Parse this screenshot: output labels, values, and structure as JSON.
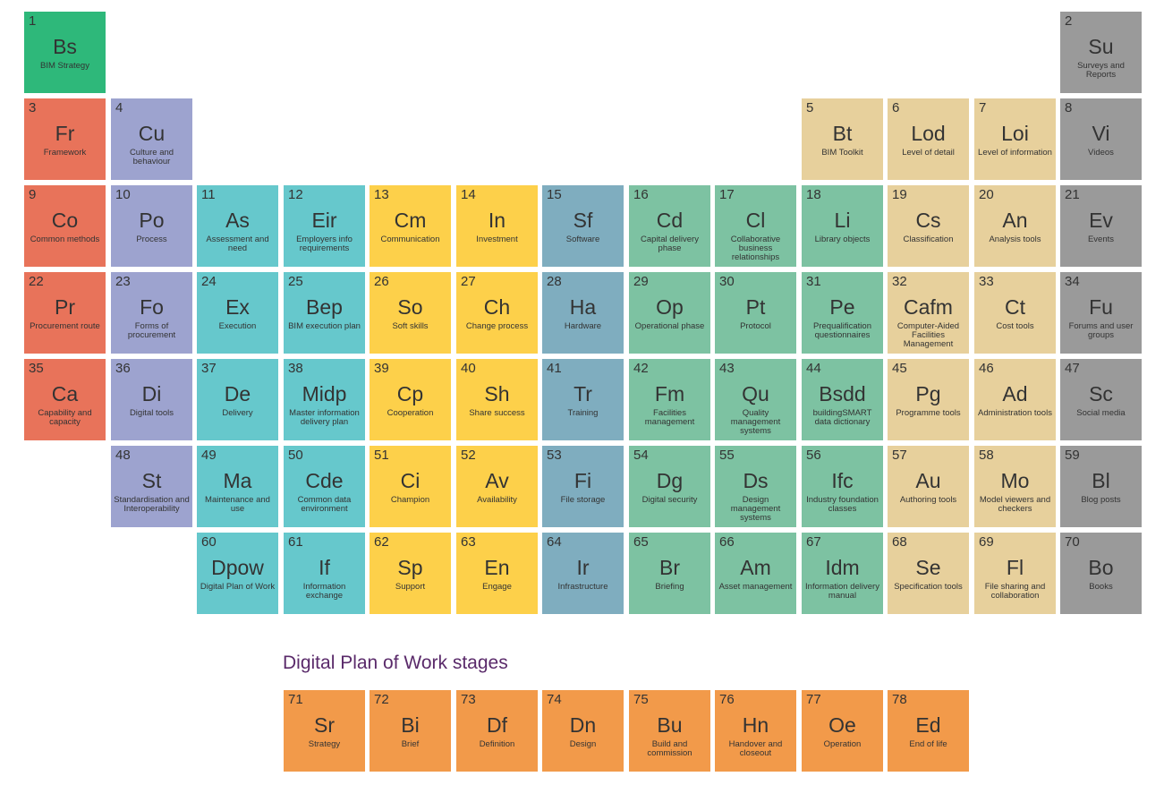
{
  "colors": {
    "strategy": "#2eb87a",
    "red": "#e8735a",
    "purple": "#9da3cf",
    "teal": "#66c8cc",
    "yellow": "#fdd04a",
    "blue": "#7fadbf",
    "green": "#7dc2a2",
    "sand": "#e7d09c",
    "grey": "#9a9a9a",
    "orange": "#f29a4a"
  },
  "elements": [
    {
      "n": "1",
      "s": "Bs",
      "name": "BIM Strategy",
      "col": 0,
      "row": 0,
      "g": "strategy"
    },
    {
      "n": "2",
      "s": "Su",
      "name": "Surveys and Reports",
      "col": 12,
      "row": 0,
      "g": "grey"
    },
    {
      "n": "3",
      "s": "Fr",
      "name": "Framework",
      "col": 0,
      "row": 1,
      "g": "red"
    },
    {
      "n": "4",
      "s": "Cu",
      "name": "Culture and behaviour",
      "col": 1,
      "row": 1,
      "g": "purple"
    },
    {
      "n": "5",
      "s": "Bt",
      "name": "BIM Toolkit",
      "col": 9,
      "row": 1,
      "g": "sand"
    },
    {
      "n": "6",
      "s": "Lod",
      "name": "Level of detail",
      "col": 10,
      "row": 1,
      "g": "sand"
    },
    {
      "n": "7",
      "s": "Loi",
      "name": "Level of information",
      "col": 11,
      "row": 1,
      "g": "sand"
    },
    {
      "n": "8",
      "s": "Vi",
      "name": "Videos",
      "col": 12,
      "row": 1,
      "g": "grey"
    },
    {
      "n": "9",
      "s": "Co",
      "name": "Common methods",
      "col": 0,
      "row": 2,
      "g": "red"
    },
    {
      "n": "10",
      "s": "Po",
      "name": "Process",
      "col": 1,
      "row": 2,
      "g": "purple"
    },
    {
      "n": "11",
      "s": "As",
      "name": "Assessment and need",
      "col": 2,
      "row": 2,
      "g": "teal"
    },
    {
      "n": "12",
      "s": "Eir",
      "name": "Employers info requirements",
      "col": 3,
      "row": 2,
      "g": "teal"
    },
    {
      "n": "13",
      "s": "Cm",
      "name": "Communication",
      "col": 4,
      "row": 2,
      "g": "yellow"
    },
    {
      "n": "14",
      "s": "In",
      "name": "Investment",
      "col": 5,
      "row": 2,
      "g": "yellow"
    },
    {
      "n": "15",
      "s": "Sf",
      "name": "Software",
      "col": 6,
      "row": 2,
      "g": "blue"
    },
    {
      "n": "16",
      "s": "Cd",
      "name": "Capital delivery phase",
      "col": 7,
      "row": 2,
      "g": "green"
    },
    {
      "n": "17",
      "s": "Cl",
      "name": "Collaborative business relationships",
      "col": 8,
      "row": 2,
      "g": "green"
    },
    {
      "n": "18",
      "s": "Li",
      "name": "Library objects",
      "col": 9,
      "row": 2,
      "g": "green"
    },
    {
      "n": "19",
      "s": "Cs",
      "name": "Classification",
      "col": 10,
      "row": 2,
      "g": "sand"
    },
    {
      "n": "20",
      "s": "An",
      "name": "Analysis tools",
      "col": 11,
      "row": 2,
      "g": "sand"
    },
    {
      "n": "21",
      "s": "Ev",
      "name": "Events",
      "col": 12,
      "row": 2,
      "g": "grey"
    },
    {
      "n": "22",
      "s": "Pr",
      "name": "Procurement route",
      "col": 0,
      "row": 3,
      "g": "red"
    },
    {
      "n": "23",
      "s": "Fo",
      "name": "Forms of procurement",
      "col": 1,
      "row": 3,
      "g": "purple"
    },
    {
      "n": "24",
      "s": "Ex",
      "name": "Execution",
      "col": 2,
      "row": 3,
      "g": "teal"
    },
    {
      "n": "25",
      "s": "Bep",
      "name": "BIM execution plan",
      "col": 3,
      "row": 3,
      "g": "teal"
    },
    {
      "n": "26",
      "s": "So",
      "name": "Soft skills",
      "col": 4,
      "row": 3,
      "g": "yellow"
    },
    {
      "n": "27",
      "s": "Ch",
      "name": "Change process",
      "col": 5,
      "row": 3,
      "g": "yellow"
    },
    {
      "n": "28",
      "s": "Ha",
      "name": "Hardware",
      "col": 6,
      "row": 3,
      "g": "blue"
    },
    {
      "n": "29",
      "s": "Op",
      "name": "Operational phase",
      "col": 7,
      "row": 3,
      "g": "green"
    },
    {
      "n": "30",
      "s": "Pt",
      "name": "Protocol",
      "col": 8,
      "row": 3,
      "g": "green"
    },
    {
      "n": "31",
      "s": "Pe",
      "name": "Prequalification questionnaires",
      "col": 9,
      "row": 3,
      "g": "green"
    },
    {
      "n": "32",
      "s": "Cafm",
      "name": "Computer-Aided Facilities Management",
      "col": 10,
      "row": 3,
      "g": "sand"
    },
    {
      "n": "33",
      "s": "Ct",
      "name": "Cost tools",
      "col": 11,
      "row": 3,
      "g": "sand"
    },
    {
      "n": "34",
      "s": "Fu",
      "name": "Forums and user groups",
      "col": 12,
      "row": 3,
      "g": "grey"
    },
    {
      "n": "35",
      "s": "Ca",
      "name": "Capability and capacity",
      "col": 0,
      "row": 4,
      "g": "red"
    },
    {
      "n": "36",
      "s": "Di",
      "name": "Digital tools",
      "col": 1,
      "row": 4,
      "g": "purple"
    },
    {
      "n": "37",
      "s": "De",
      "name": "Delivery",
      "col": 2,
      "row": 4,
      "g": "teal"
    },
    {
      "n": "38",
      "s": "Midp",
      "name": "Master information delivery plan",
      "col": 3,
      "row": 4,
      "g": "teal"
    },
    {
      "n": "39",
      "s": "Cp",
      "name": "Cooperation",
      "col": 4,
      "row": 4,
      "g": "yellow"
    },
    {
      "n": "40",
      "s": "Sh",
      "name": "Share success",
      "col": 5,
      "row": 4,
      "g": "yellow"
    },
    {
      "n": "41",
      "s": "Tr",
      "name": "Training",
      "col": 6,
      "row": 4,
      "g": "blue"
    },
    {
      "n": "42",
      "s": "Fm",
      "name": "Facilities management",
      "col": 7,
      "row": 4,
      "g": "green"
    },
    {
      "n": "43",
      "s": "Qu",
      "name": "Quality management systems",
      "col": 8,
      "row": 4,
      "g": "green"
    },
    {
      "n": "44",
      "s": "Bsdd",
      "name": "buildingSMART data dictionary",
      "col": 9,
      "row": 4,
      "g": "green"
    },
    {
      "n": "45",
      "s": "Pg",
      "name": "Programme tools",
      "col": 10,
      "row": 4,
      "g": "sand"
    },
    {
      "n": "46",
      "s": "Ad",
      "name": "Administration tools",
      "col": 11,
      "row": 4,
      "g": "sand"
    },
    {
      "n": "47",
      "s": "Sc",
      "name": "Social media",
      "col": 12,
      "row": 4,
      "g": "grey"
    },
    {
      "n": "48",
      "s": "St",
      "name": "Standardisation and Interoperability",
      "col": 1,
      "row": 5,
      "g": "purple"
    },
    {
      "n": "49",
      "s": "Ma",
      "name": "Maintenance and use",
      "col": 2,
      "row": 5,
      "g": "teal"
    },
    {
      "n": "50",
      "s": "Cde",
      "name": "Common data environment",
      "col": 3,
      "row": 5,
      "g": "teal"
    },
    {
      "n": "51",
      "s": "Ci",
      "name": "Champion",
      "col": 4,
      "row": 5,
      "g": "yellow"
    },
    {
      "n": "52",
      "s": "Av",
      "name": "Availability",
      "col": 5,
      "row": 5,
      "g": "yellow"
    },
    {
      "n": "53",
      "s": "Fi",
      "name": "File storage",
      "col": 6,
      "row": 5,
      "g": "blue"
    },
    {
      "n": "54",
      "s": "Dg",
      "name": "Digital security",
      "col": 7,
      "row": 5,
      "g": "green"
    },
    {
      "n": "55",
      "s": "Ds",
      "name": "Design management systems",
      "col": 8,
      "row": 5,
      "g": "green"
    },
    {
      "n": "56",
      "s": "Ifc",
      "name": "Industry foundation classes",
      "col": 9,
      "row": 5,
      "g": "green"
    },
    {
      "n": "57",
      "s": "Au",
      "name": "Authoring tools",
      "col": 10,
      "row": 5,
      "g": "sand"
    },
    {
      "n": "58",
      "s": "Mo",
      "name": "Model viewers and checkers",
      "col": 11,
      "row": 5,
      "g": "sand"
    },
    {
      "n": "59",
      "s": "Bl",
      "name": "Blog posts",
      "col": 12,
      "row": 5,
      "g": "grey"
    },
    {
      "n": "60",
      "s": "Dpow",
      "name": "Digital Plan of Work",
      "col": 2,
      "row": 6,
      "g": "teal"
    },
    {
      "n": "61",
      "s": "If",
      "name": "Information exchange",
      "col": 3,
      "row": 6,
      "g": "teal"
    },
    {
      "n": "62",
      "s": "Sp",
      "name": "Support",
      "col": 4,
      "row": 6,
      "g": "yellow"
    },
    {
      "n": "63",
      "s": "En",
      "name": "Engage",
      "col": 5,
      "row": 6,
      "g": "yellow"
    },
    {
      "n": "64",
      "s": "Ir",
      "name": "Infrastructure",
      "col": 6,
      "row": 6,
      "g": "blue"
    },
    {
      "n": "65",
      "s": "Br",
      "name": "Briefing",
      "col": 7,
      "row": 6,
      "g": "green"
    },
    {
      "n": "66",
      "s": "Am",
      "name": "Asset management",
      "col": 8,
      "row": 6,
      "g": "green"
    },
    {
      "n": "67",
      "s": "Idm",
      "name": "Information delivery manual",
      "col": 9,
      "row": 6,
      "g": "green"
    },
    {
      "n": "68",
      "s": "Se",
      "name": "Specification tools",
      "col": 10,
      "row": 6,
      "g": "sand"
    },
    {
      "n": "69",
      "s": "Fl",
      "name": "File sharing and collaboration",
      "col": 11,
      "row": 6,
      "g": "sand"
    },
    {
      "n": "70",
      "s": "Bo",
      "name": "Books",
      "col": 12,
      "row": 6,
      "g": "grey"
    }
  ],
  "stages_title": "Digital Plan of Work stages",
  "stages": [
    {
      "n": "71",
      "s": "Sr",
      "name": "Strategy",
      "col": 3
    },
    {
      "n": "72",
      "s": "Bi",
      "name": "Brief",
      "col": 4
    },
    {
      "n": "73",
      "s": "Df",
      "name": "Definition",
      "col": 5
    },
    {
      "n": "74",
      "s": "Dn",
      "name": "Design",
      "col": 6
    },
    {
      "n": "75",
      "s": "Bu",
      "name": "Build and commission",
      "col": 7
    },
    {
      "n": "76",
      "s": "Hn",
      "name": "Handover and closeout",
      "col": 8
    },
    {
      "n": "77",
      "s": "Oe",
      "name": "Operation",
      "col": 9
    },
    {
      "n": "78",
      "s": "Ed",
      "name": "End of life",
      "col": 10
    }
  ]
}
